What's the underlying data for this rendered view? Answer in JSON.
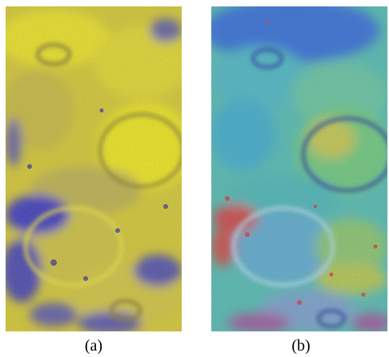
{
  "figure": {
    "panels": [
      {
        "caption": "(a)",
        "colors": {
          "dominant": "#e8dc2a",
          "secondary": "#3a3ac8",
          "crater_shadow": "#6c6428"
        }
      },
      {
        "caption": "(b)",
        "colors": {
          "dominant": "#4fd0b0",
          "secondary": "#3a6ee0",
          "highlight": "#e8d040",
          "accent": "#e23a3a"
        }
      }
    ]
  }
}
